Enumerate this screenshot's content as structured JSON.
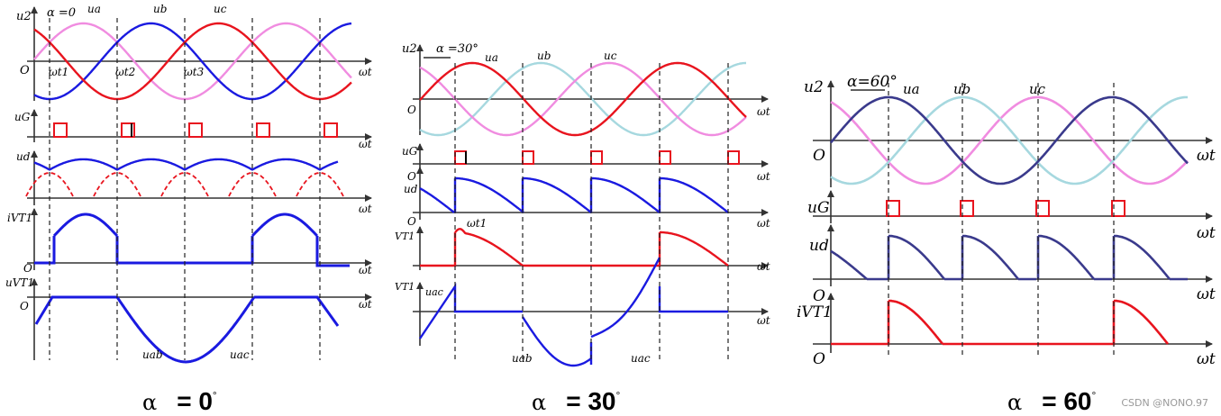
{
  "colors": {
    "red": "#e8141e",
    "blue": "#1a1ae0",
    "pink": "#f08ce0",
    "lightcyan": "#a6d8df",
    "navy": "#3a3a8c",
    "axis": "#333333"
  },
  "panel_a": {
    "alpha_text": "α =0",
    "y_top": "u2",
    "origin": "O",
    "ua": "ua",
    "ub": "ub",
    "uc": "uc",
    "t1": "ωt1",
    "t2": "ωt2",
    "t3": "ωt3",
    "ug": "uG",
    "ud": "ud",
    "ivt1": "iVT1",
    "uvt1": "uVT1",
    "uab": "uab",
    "uac": "uac",
    "wt": "ωt",
    "caption_alpha": "α",
    "caption_value": "= 0",
    "caption_deg": "°"
  },
  "panel_b": {
    "alpha_text": "α =30°",
    "y_top": "u2",
    "origin": "O",
    "ua": "ua",
    "ub": "ub",
    "uc": "uc",
    "t1": "ωt1",
    "ug": "uG",
    "ud": "ud",
    "ivt1": "VT1",
    "uvt1": "VT1",
    "uac_small": "uac",
    "uab": "uab",
    "uac": "uac",
    "wt": "ωt",
    "caption_alpha": "α",
    "caption_value": "= 30",
    "caption_deg": "°"
  },
  "panel_c": {
    "alpha_text": "α=60°",
    "y_top": "u2",
    "origin": "O",
    "ua": "ua",
    "ub": "ub",
    "uc": "uc",
    "ug": "uG",
    "ud": "ud",
    "ivt1": "iVT1",
    "wt": "ωt",
    "caption_alpha": "α",
    "caption_value": "= 60",
    "caption_deg": "°"
  },
  "watermark": "CSDN @NONO.97"
}
